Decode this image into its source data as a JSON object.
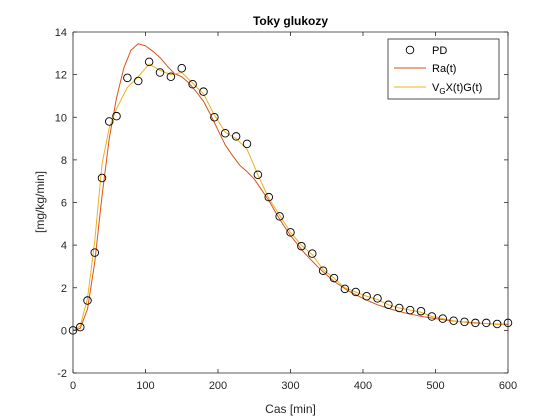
{
  "chart_data": {
    "type": "line",
    "title": "Toky glukozy",
    "xlabel": "Cas [min]",
    "ylabel": "[mg/kg/min]",
    "xlim": [
      0,
      600
    ],
    "ylim": [
      -2,
      14
    ],
    "xticks": [
      0,
      100,
      200,
      300,
      400,
      500,
      600
    ],
    "yticks": [
      -2,
      0,
      2,
      4,
      6,
      8,
      10,
      12,
      14
    ],
    "grid": false,
    "legend_position": "top-right",
    "series": [
      {
        "name": "PD",
        "style": "markers",
        "color": "#000000",
        "x": [
          0,
          10,
          20,
          30,
          40,
          50,
          60,
          75,
          90,
          105,
          120,
          135,
          150,
          165,
          180,
          195,
          210,
          225,
          240,
          255,
          270,
          285,
          300,
          315,
          330,
          345,
          360,
          375,
          390,
          405,
          420,
          435,
          450,
          465,
          480,
          495,
          510,
          525,
          540,
          555,
          570,
          585,
          600
        ],
        "y": [
          0.0,
          0.15,
          1.4,
          3.65,
          7.15,
          9.8,
          10.05,
          11.85,
          11.7,
          12.6,
          12.1,
          11.9,
          12.3,
          11.55,
          11.2,
          10.0,
          9.25,
          9.1,
          8.75,
          7.3,
          6.25,
          5.35,
          4.6,
          3.95,
          3.6,
          2.8,
          2.45,
          1.95,
          1.8,
          1.6,
          1.5,
          1.2,
          1.05,
          0.95,
          0.9,
          0.65,
          0.55,
          0.45,
          0.4,
          0.35,
          0.35,
          0.3,
          0.35
        ]
      },
      {
        "name": "Ra(t)",
        "style": "line",
        "color": "#D95319",
        "x": [
          0,
          10,
          20,
          30,
          40,
          50,
          60,
          70,
          80,
          90,
          100,
          110,
          120,
          130,
          140,
          150,
          160,
          170,
          180,
          190,
          200,
          210,
          220,
          230,
          240,
          250,
          260,
          270,
          280,
          290,
          300,
          320,
          340,
          360,
          380,
          400,
          420,
          440,
          460,
          480,
          500,
          520,
          540,
          560,
          580,
          600
        ],
        "y": [
          0.0,
          0.1,
          1.0,
          3.2,
          6.3,
          9.0,
          10.9,
          12.3,
          13.15,
          13.45,
          13.35,
          13.1,
          12.8,
          12.4,
          12.05,
          11.9,
          11.6,
          11.2,
          10.75,
          10.1,
          9.4,
          8.7,
          8.2,
          7.75,
          7.45,
          7.1,
          6.6,
          6.1,
          5.5,
          4.95,
          4.45,
          3.6,
          2.9,
          2.3,
          1.85,
          1.5,
          1.2,
          0.98,
          0.8,
          0.66,
          0.55,
          0.46,
          0.39,
          0.34,
          0.3,
          0.27
        ]
      },
      {
        "name": "V_GX(t)G(t)",
        "style": "line",
        "color": "#EDB120",
        "x": [
          0,
          10,
          20,
          30,
          40,
          50,
          60,
          75,
          90,
          105,
          120,
          135,
          150,
          165,
          180,
          195,
          210,
          225,
          240,
          255,
          270,
          285,
          300,
          315,
          330,
          345,
          360,
          375,
          390,
          405,
          420,
          435,
          450,
          465,
          480,
          495,
          510,
          525,
          540,
          555,
          570,
          585,
          600
        ],
        "y": [
          0.0,
          0.2,
          1.5,
          4.2,
          7.8,
          9.5,
          10.4,
          11.4,
          11.9,
          12.5,
          12.2,
          12.0,
          12.1,
          11.6,
          11.1,
          10.1,
          9.3,
          9.0,
          8.5,
          7.3,
          6.2,
          5.4,
          4.6,
          4.0,
          3.55,
          2.85,
          2.45,
          2.0,
          1.8,
          1.6,
          1.45,
          1.2,
          1.05,
          0.95,
          0.85,
          0.65,
          0.55,
          0.45,
          0.38,
          0.33,
          0.32,
          0.28,
          0.3
        ]
      }
    ]
  },
  "legend": {
    "entries": [
      {
        "label": "PD"
      },
      {
        "label": "Ra(t)"
      },
      {
        "label_prefix": "V",
        "label_sub": "G",
        "label_suffix": "X(t)G(t)"
      }
    ]
  }
}
